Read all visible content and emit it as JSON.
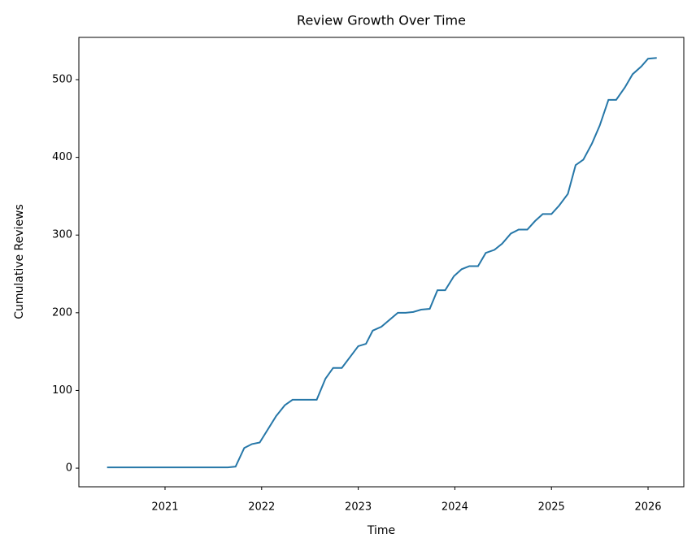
{
  "chart_data": {
    "type": "line",
    "title": "Review Growth Over Time",
    "xlabel": "Time",
    "ylabel": "Cumulative Reviews",
    "x": [
      2020.4,
      2021.65,
      2021.73,
      2021.82,
      2021.9,
      2021.98,
      2022.15,
      2022.24,
      2022.32,
      2022.57,
      2022.66,
      2022.74,
      2022.83,
      2023.0,
      2023.08,
      2023.15,
      2023.24,
      2023.41,
      2023.49,
      2023.57,
      2023.65,
      2023.74,
      2023.82,
      2023.9,
      2023.99,
      2024.07,
      2024.15,
      2024.24,
      2024.32,
      2024.41,
      2024.49,
      2024.58,
      2024.66,
      2024.75,
      2024.83,
      2024.91,
      2025.0,
      2025.08,
      2025.17,
      2025.25,
      2025.33,
      2025.42,
      2025.5,
      2025.59,
      2025.67,
      2025.76,
      2025.84,
      2025.93,
      2026.0,
      2026.09
    ],
    "series": [
      {
        "name": "Cumulative Reviews",
        "color": "#2677a8",
        "values": [
          1,
          1,
          2,
          26,
          31,
          33,
          67,
          81,
          88,
          88,
          115,
          129,
          129,
          157,
          160,
          177,
          182,
          200,
          200,
          201,
          204,
          205,
          229,
          229,
          247,
          256,
          260,
          260,
          277,
          281,
          289,
          302,
          307,
          307,
          318,
          327,
          327,
          338,
          353,
          390,
          397,
          418,
          441,
          474,
          474,
          490,
          507,
          517,
          527,
          528
        ]
      }
    ],
    "xlim": [
      2020.108,
      2026.37
    ],
    "xticks": [
      2021,
      2022,
      2023,
      2024,
      2025,
      2026
    ],
    "ylim": [
      -24,
      554.4
    ],
    "yticks": [
      0,
      100,
      200,
      300,
      400,
      500
    ]
  }
}
